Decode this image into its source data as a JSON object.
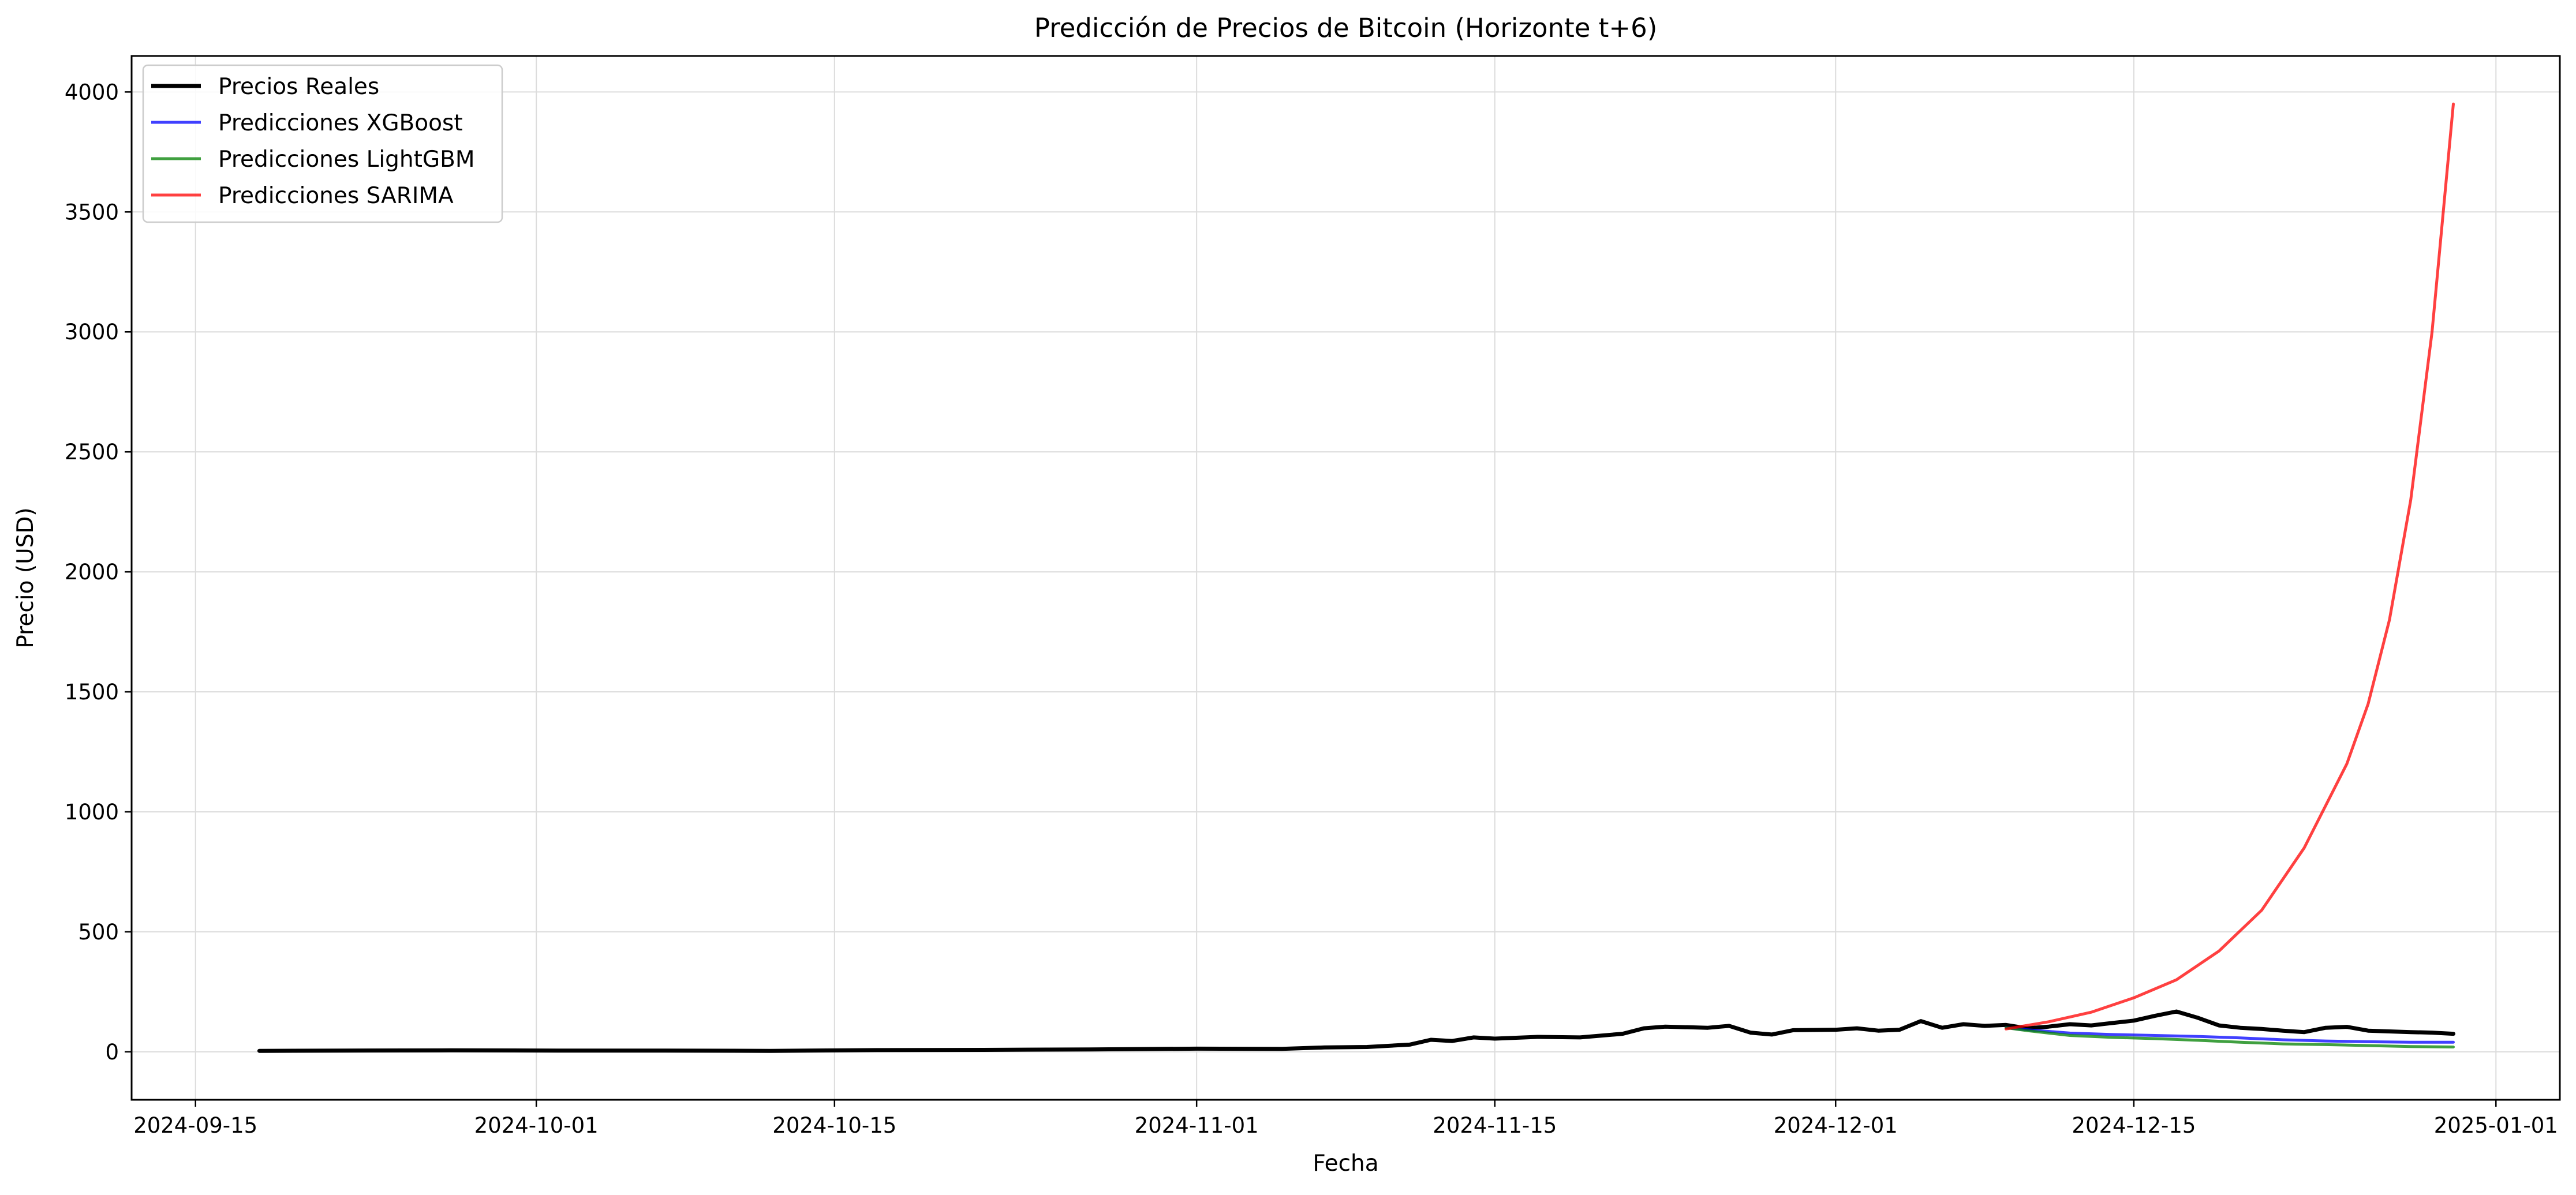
{
  "chart_data": {
    "type": "line",
    "title": "Predicción de Precios de Bitcoin (Horizonte t+6)",
    "xlabel": "Fecha",
    "ylabel": "Precio (USD)",
    "xlim": [
      "2024-09-12",
      "2025-01-04"
    ],
    "ylim": [
      -200,
      4150
    ],
    "x_ticks": [
      "2024-09-15",
      "2024-10-01",
      "2024-10-15",
      "2024-11-01",
      "2024-11-15",
      "2024-12-01",
      "2024-12-15",
      "2025-01-01"
    ],
    "y_ticks": [
      0,
      500,
      1000,
      1500,
      2000,
      2500,
      3000,
      3500,
      4000
    ],
    "grid": true,
    "legend_position": "top-left",
    "series": [
      {
        "name": "Precios Reales",
        "color": "#000000",
        "points": [
          [
            "2024-09-18",
            4
          ],
          [
            "2024-09-22",
            5
          ],
          [
            "2024-09-27",
            6
          ],
          [
            "2024-10-02",
            5
          ],
          [
            "2024-10-07",
            5
          ],
          [
            "2024-10-12",
            4
          ],
          [
            "2024-10-17",
            7
          ],
          [
            "2024-10-22",
            8
          ],
          [
            "2024-10-27",
            10
          ],
          [
            "2024-11-01",
            13
          ],
          [
            "2024-11-05",
            12
          ],
          [
            "2024-11-07",
            18
          ],
          [
            "2024-11-09",
            20
          ],
          [
            "2024-11-11",
            30
          ],
          [
            "2024-11-12",
            50
          ],
          [
            "2024-11-13",
            45
          ],
          [
            "2024-11-14",
            60
          ],
          [
            "2024-11-15",
            55
          ],
          [
            "2024-11-17",
            62
          ],
          [
            "2024-11-19",
            60
          ],
          [
            "2024-11-21",
            75
          ],
          [
            "2024-11-22",
            98
          ],
          [
            "2024-11-23",
            105
          ],
          [
            "2024-11-25",
            100
          ],
          [
            "2024-11-26",
            108
          ],
          [
            "2024-11-27",
            80
          ],
          [
            "2024-11-28",
            72
          ],
          [
            "2024-11-29",
            90
          ],
          [
            "2024-12-01",
            92
          ],
          [
            "2024-12-02",
            98
          ],
          [
            "2024-12-03",
            88
          ],
          [
            "2024-12-04",
            92
          ],
          [
            "2024-12-05",
            128
          ],
          [
            "2024-12-06",
            100
          ],
          [
            "2024-12-07",
            115
          ],
          [
            "2024-12-08",
            108
          ],
          [
            "2024-12-09",
            112
          ],
          [
            "2024-12-10",
            98
          ],
          [
            "2024-12-11",
            105
          ],
          [
            "2024-12-12",
            115
          ],
          [
            "2024-12-13",
            110
          ],
          [
            "2024-12-14",
            120
          ],
          [
            "2024-12-15",
            130
          ],
          [
            "2024-12-16",
            150
          ],
          [
            "2024-12-17",
            168
          ],
          [
            "2024-12-18",
            142
          ],
          [
            "2024-12-19",
            110
          ],
          [
            "2024-12-20",
            100
          ],
          [
            "2024-12-21",
            95
          ],
          [
            "2024-12-22",
            88
          ],
          [
            "2024-12-23",
            82
          ],
          [
            "2024-12-24",
            100
          ],
          [
            "2024-12-25",
            104
          ],
          [
            "2024-12-26",
            88
          ],
          [
            "2024-12-27",
            85
          ],
          [
            "2024-12-28",
            82
          ],
          [
            "2024-12-29",
            80
          ],
          [
            "2024-12-30",
            75
          ]
        ]
      },
      {
        "name": "Predicciones XGBoost",
        "color": "#0000ff",
        "points": [
          [
            "2024-12-09",
            100
          ],
          [
            "2024-12-10",
            92
          ],
          [
            "2024-12-11",
            85
          ],
          [
            "2024-12-12",
            78
          ],
          [
            "2024-12-14",
            72
          ],
          [
            "2024-12-16",
            68
          ],
          [
            "2024-12-18",
            64
          ],
          [
            "2024-12-20",
            58
          ],
          [
            "2024-12-22",
            50
          ],
          [
            "2024-12-24",
            45
          ],
          [
            "2024-12-26",
            42
          ],
          [
            "2024-12-28",
            40
          ],
          [
            "2024-12-30",
            40
          ]
        ]
      },
      {
        "name": "Predicciones LightGBM",
        "color": "#008000",
        "points": [
          [
            "2024-12-09",
            100
          ],
          [
            "2024-12-10",
            88
          ],
          [
            "2024-12-11",
            78
          ],
          [
            "2024-12-12",
            68
          ],
          [
            "2024-12-14",
            60
          ],
          [
            "2024-12-16",
            55
          ],
          [
            "2024-12-18",
            48
          ],
          [
            "2024-12-20",
            40
          ],
          [
            "2024-12-22",
            33
          ],
          [
            "2024-12-24",
            30
          ],
          [
            "2024-12-26",
            26
          ],
          [
            "2024-12-28",
            22
          ],
          [
            "2024-12-30",
            20
          ]
        ]
      },
      {
        "name": "Predicciones SARIMA",
        "color": "#ff0000",
        "points": [
          [
            "2024-12-09",
            95
          ],
          [
            "2024-12-11",
            125
          ],
          [
            "2024-12-13",
            165
          ],
          [
            "2024-12-15",
            225
          ],
          [
            "2024-12-17",
            300
          ],
          [
            "2024-12-19",
            420
          ],
          [
            "2024-12-21",
            590
          ],
          [
            "2024-12-23",
            850
          ],
          [
            "2024-12-25",
            1200
          ],
          [
            "2024-12-26",
            1450
          ],
          [
            "2024-12-27",
            1800
          ],
          [
            "2024-12-28",
            2300
          ],
          [
            "2024-12-29",
            3000
          ],
          [
            "2024-12-30",
            3950
          ]
        ]
      }
    ]
  }
}
